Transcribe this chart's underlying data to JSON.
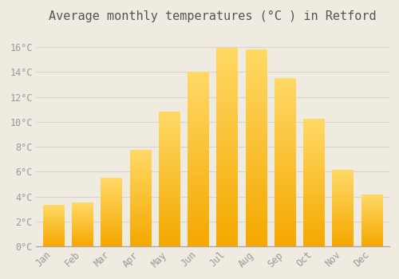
{
  "title": "Average monthly temperatures (°C ) in Retford",
  "months": [
    "Jan",
    "Feb",
    "Mar",
    "Apr",
    "May",
    "Jun",
    "Jul",
    "Aug",
    "Sep",
    "Oct",
    "Nov",
    "Dec"
  ],
  "values": [
    3.3,
    3.5,
    5.5,
    7.7,
    10.8,
    14.0,
    15.9,
    15.8,
    13.5,
    10.2,
    6.1,
    4.1
  ],
  "bar_color_bottom": "#F5A800",
  "bar_color_top": "#FFD966",
  "background_color": "#F0EBE0",
  "plot_bg_color": "#F0EBE0",
  "grid_color": "#D8D4CC",
  "yticks": [
    0,
    2,
    4,
    6,
    8,
    10,
    12,
    14,
    16
  ],
  "ylim": [
    0,
    17.5
  ],
  "title_fontsize": 11,
  "tick_fontsize": 8.5,
  "title_color": "#555555",
  "tick_color": "#999999",
  "bar_width": 0.72,
  "n_gradient_steps": 100
}
